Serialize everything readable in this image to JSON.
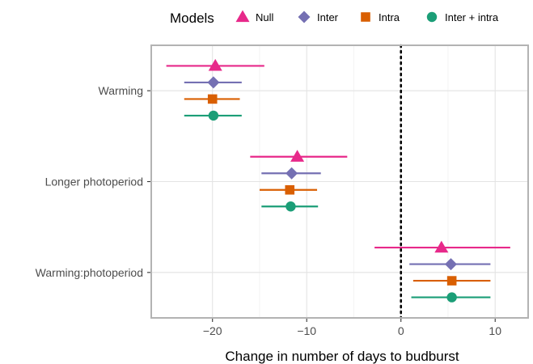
{
  "legend": {
    "title": "Models",
    "position": "top"
  },
  "chart_data": {
    "type": "scatter",
    "subtype": "dot-and-whisker (point estimate with interval)",
    "title": "",
    "xlabel": "Change in number of days to budburst",
    "ylabel": "",
    "xlim": [
      -26.5,
      13.5
    ],
    "x_ticks": [
      -20,
      -10,
      0,
      10
    ],
    "x_tick_labels": [
      "−20",
      "−10",
      "0",
      "10"
    ],
    "reference_line": {
      "x": 0,
      "style": "dotted",
      "color": "#000000"
    },
    "grid": true,
    "categories": [
      "Warming",
      "Longer photoperiod",
      "Warming:photoperiod"
    ],
    "series": [
      {
        "name": "Null",
        "marker": "triangle-icon",
        "color": "#E7298A",
        "estimate": [
          -19.7,
          -11.0,
          4.3
        ],
        "lower": [
          -24.9,
          -16.0,
          -2.8
        ],
        "upper": [
          -14.5,
          -5.7,
          11.6
        ]
      },
      {
        "name": "Inter",
        "marker": "diamond-icon",
        "color": "#7570B3",
        "estimate": [
          -19.9,
          -11.6,
          5.3
        ],
        "lower": [
          -23.0,
          -14.8,
          0.9
        ],
        "upper": [
          -16.9,
          -8.5,
          9.5
        ]
      },
      {
        "name": "Intra",
        "marker": "square-icon",
        "color": "#D95F02",
        "estimate": [
          -20.0,
          -11.8,
          5.4
        ],
        "lower": [
          -23.0,
          -15.0,
          1.3
        ],
        "upper": [
          -17.1,
          -8.9,
          9.5
        ]
      },
      {
        "name": "Inter + intra",
        "marker": "circle-icon",
        "color": "#1B9E77",
        "estimate": [
          -19.9,
          -11.7,
          5.4
        ],
        "lower": [
          -23.0,
          -14.8,
          1.1
        ],
        "upper": [
          -16.9,
          -8.8,
          9.5
        ]
      }
    ]
  }
}
